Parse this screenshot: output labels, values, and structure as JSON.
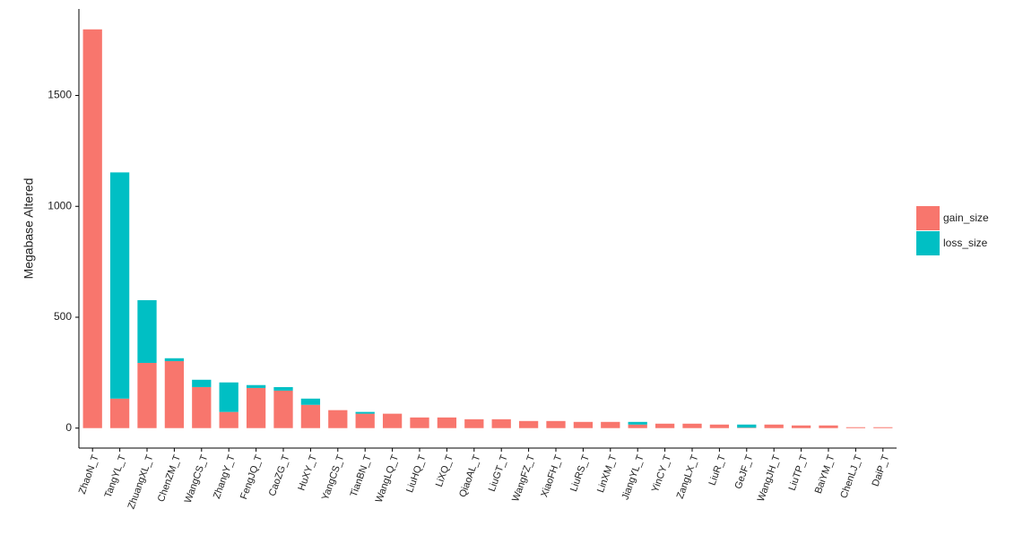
{
  "chart_data": {
    "type": "bar",
    "stacked": true,
    "ylabel": "Megabase Altered",
    "categories": [
      "ZhaoN_T",
      "TangYL_T",
      "ZhuangXL_T",
      "ChenZM_T",
      "WangCS_T",
      "ZhangY_T",
      "FengJQ_T",
      "CaoZG_T",
      "HuXY_T",
      "YangCS_T",
      "TianBN_T",
      "WangLQ_T",
      "LiuHQ_T",
      "LiXQ_T",
      "QiaoAL_T",
      "LiuGT_T",
      "WangFZ_T",
      "XiaoFH_T",
      "LiuRS_T",
      "LinXM_T",
      "JiangYL_T",
      "YinCY_T",
      "ZangLX_T",
      "LiuR_T",
      "GeJF_T",
      "WangJH_T",
      "LiuTP_T",
      "BaiYM_T",
      "ChenLJ_T",
      "DaiP_T"
    ],
    "series": [
      {
        "name": "gain_size",
        "color": "#F8766D",
        "values": [
          1798,
          133,
          294,
          302,
          185,
          73,
          181,
          169,
          105,
          81,
          65,
          65,
          48,
          48,
          40,
          40,
          32,
          32,
          28,
          28,
          16,
          20,
          20,
          16,
          2,
          16,
          12,
          12,
          4,
          4
        ]
      },
      {
        "name": "loss_size",
        "color": "#00BFC4",
        "values": [
          0,
          1020,
          283,
          13,
          33,
          133,
          13,
          16,
          28,
          0,
          8,
          0,
          0,
          0,
          0,
          0,
          0,
          0,
          0,
          0,
          12,
          0,
          0,
          0,
          14,
          0,
          0,
          0,
          0,
          0
        ]
      }
    ],
    "ylim": [
      -90,
      1890
    ],
    "yticks": [
      0,
      500,
      1000,
      1500
    ],
    "legend": "right"
  }
}
